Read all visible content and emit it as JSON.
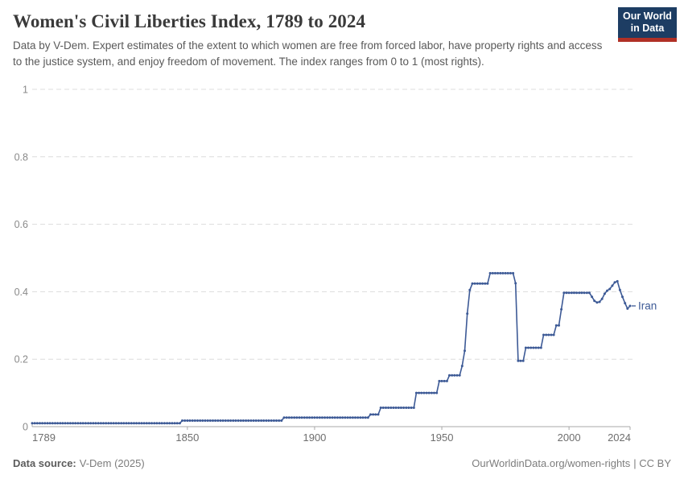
{
  "logo": {
    "line1": "Our World",
    "line2": "in Data",
    "navy": "#1d3d63",
    "red": "#b03026"
  },
  "footer": {
    "source_label": "Data source:",
    "source_value": "V-Dem (2025)",
    "link": "OurWorldinData.org/women-rights",
    "license": "| CC BY"
  },
  "colors": {
    "line": "#3d5a96",
    "grid": "#dcdcdc",
    "axis": "#a8a8a8",
    "title_text": "#3a3a3a",
    "subtitle_text": "#595959"
  },
  "chart_data": {
    "type": "line",
    "title": "Women's Civil Liberties Index, 1789 to 2024",
    "subtitle": "Data by V-Dem. Expert estimates of the extent to which women are free from forced labor, have property rights and access to the justice system, and enjoy freedom of movement. The index ranges from 0 to 1 (most rights).",
    "xlabel": "",
    "ylabel": "",
    "xlim": [
      1789,
      2024
    ],
    "ylim": [
      0,
      1
    ],
    "grid": true,
    "legend_position": "end-of-line-label",
    "x_ticks": [
      1789,
      1850,
      1900,
      1950,
      2000,
      2024
    ],
    "y_ticks": [
      0,
      0.2,
      0.4,
      0.6,
      0.8,
      1
    ],
    "y_tick_labels": [
      "0",
      "0.2",
      "0.4",
      "0.6",
      "0.8",
      "1"
    ],
    "series": [
      {
        "name": "Iran",
        "color": "#3d5a96",
        "interpolation": "annual points; flat segments expanded year by year",
        "segments": [
          {
            "from": 1789,
            "to": 1847,
            "value": 0.01
          },
          {
            "from": 1848,
            "to": 1887,
            "value": 0.018
          },
          {
            "from": 1888,
            "to": 1921,
            "value": 0.027
          },
          {
            "from": 1922,
            "to": 1925,
            "value": 0.036
          },
          {
            "from": 1926,
            "to": 1939,
            "value": 0.056
          },
          {
            "from": 1940,
            "to": 1948,
            "value": 0.1
          },
          {
            "from": 1949,
            "to": 1952,
            "value": 0.135
          },
          {
            "from": 1953,
            "to": 1957,
            "value": 0.152
          },
          {
            "from": 1958,
            "to": 1958,
            "value": 0.18
          },
          {
            "from": 1959,
            "to": 1959,
            "value": 0.225
          },
          {
            "from": 1960,
            "to": 1960,
            "value": 0.335
          },
          {
            "from": 1961,
            "to": 1961,
            "value": 0.405
          },
          {
            "from": 1962,
            "to": 1968,
            "value": 0.424
          },
          {
            "from": 1969,
            "to": 1978,
            "value": 0.455
          },
          {
            "from": 1979,
            "to": 1979,
            "value": 0.425
          },
          {
            "from": 1980,
            "to": 1982,
            "value": 0.195
          },
          {
            "from": 1983,
            "to": 1989,
            "value": 0.234
          },
          {
            "from": 1990,
            "to": 1994,
            "value": 0.272
          },
          {
            "from": 1995,
            "to": 1996,
            "value": 0.3
          },
          {
            "from": 1997,
            "to": 1997,
            "value": 0.348
          },
          {
            "from": 1998,
            "to": 2008,
            "value": 0.397
          },
          {
            "from": 2009,
            "to": 2009,
            "value": 0.385
          },
          {
            "from": 2010,
            "to": 2010,
            "value": 0.373
          },
          {
            "from": 2011,
            "to": 2011,
            "value": 0.368
          },
          {
            "from": 2012,
            "to": 2012,
            "value": 0.37
          },
          {
            "from": 2013,
            "to": 2013,
            "value": 0.379
          },
          {
            "from": 2014,
            "to": 2014,
            "value": 0.394
          },
          {
            "from": 2015,
            "to": 2015,
            "value": 0.403
          },
          {
            "from": 2016,
            "to": 2016,
            "value": 0.408
          },
          {
            "from": 2017,
            "to": 2017,
            "value": 0.418
          },
          {
            "from": 2018,
            "to": 2018,
            "value": 0.428
          },
          {
            "from": 2019,
            "to": 2019,
            "value": 0.431
          },
          {
            "from": 2020,
            "to": 2020,
            "value": 0.405
          },
          {
            "from": 2021,
            "to": 2021,
            "value": 0.385
          },
          {
            "from": 2022,
            "to": 2022,
            "value": 0.366
          },
          {
            "from": 2023,
            "to": 2023,
            "value": 0.35
          },
          {
            "from": 2024,
            "to": 2024,
            "value": 0.358
          }
        ]
      }
    ]
  }
}
